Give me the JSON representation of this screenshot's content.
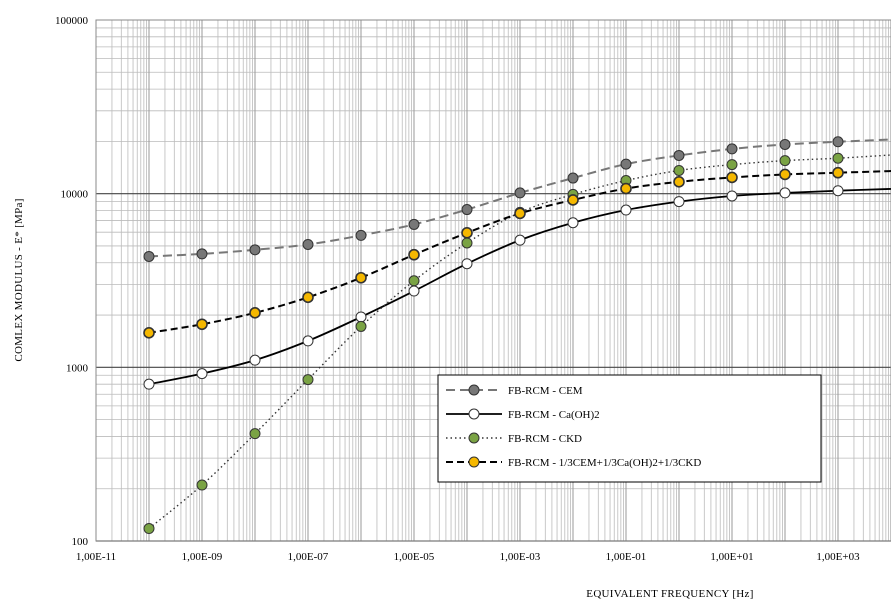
{
  "chart_data": {
    "type": "line",
    "title": "",
    "xlabel": "EQUIVALENT  FREQUENCY  [Hz]",
    "ylabel": "COMLEX  MODULUS - E* [MPa]",
    "x_scale": "log",
    "y_scale": "log",
    "xlim": [
      1e-11,
      10000.0
    ],
    "ylim": [
      100,
      100000
    ],
    "x_ticks": [
      1e-11,
      1e-09,
      1e-07,
      1e-05,
      0.001,
      0.1,
      10.0,
      1000.0
    ],
    "x_tick_labels": [
      "1,00E-11",
      "1,00E-09",
      "1,00E-07",
      "1,00E-05",
      "1,00E-03",
      "1,00E-01",
      "1,00E+01",
      "1,00E+03"
    ],
    "y_ticks": [
      100,
      1000,
      10000,
      100000
    ],
    "y_tick_labels": [
      "100",
      "1000",
      "10000",
      "100000"
    ],
    "grid": true,
    "legend_position": "lower-right",
    "x": [
      1e-10,
      1e-09,
      1e-08,
      1e-07,
      1e-06,
      1e-05,
      0.0001,
      0.001,
      0.01,
      0.1,
      1,
      10,
      100,
      1000
    ],
    "series": [
      {
        "name": "FB-RCM - CEM",
        "values": [
          4350,
          4500,
          4750,
          5100,
          5750,
          6650,
          8100,
          10100,
          12300,
          14800,
          16600,
          18100,
          19200,
          19900
        ],
        "curve_end": 20500,
        "line": "dashed",
        "line_color": "#777777",
        "marker_color": "#777777"
      },
      {
        "name": "FB-RCM - Ca(OH)2",
        "values": [
          800,
          920,
          1100,
          1420,
          1950,
          2750,
          3950,
          5400,
          6800,
          8050,
          9000,
          9700,
          10100,
          10400
        ],
        "curve_end": 10650,
        "line": "solid",
        "line_color": "#000000",
        "marker_color": "#ffffff"
      },
      {
        "name": "FB-RCM - CKD",
        "values": [
          118,
          210,
          415,
          850,
          1720,
          3150,
          5200,
          7800,
          9900,
          11900,
          13600,
          14700,
          15500,
          16000
        ],
        "curve_end": 16700,
        "line": "dotted",
        "line_color": "#333333",
        "marker_color": "#7aa344"
      },
      {
        "name": "FB-RCM - 1/3CEM+1/3Ca(OH)2+1/3CKD",
        "values": [
          1580,
          1770,
          2060,
          2530,
          3280,
          4450,
          5950,
          7700,
          9200,
          10700,
          11700,
          12400,
          12900,
          13200
        ],
        "curve_end": 13500,
        "line": "dashed-bold",
        "line_color": "#000000",
        "marker_color": "#f5b800"
      }
    ]
  }
}
